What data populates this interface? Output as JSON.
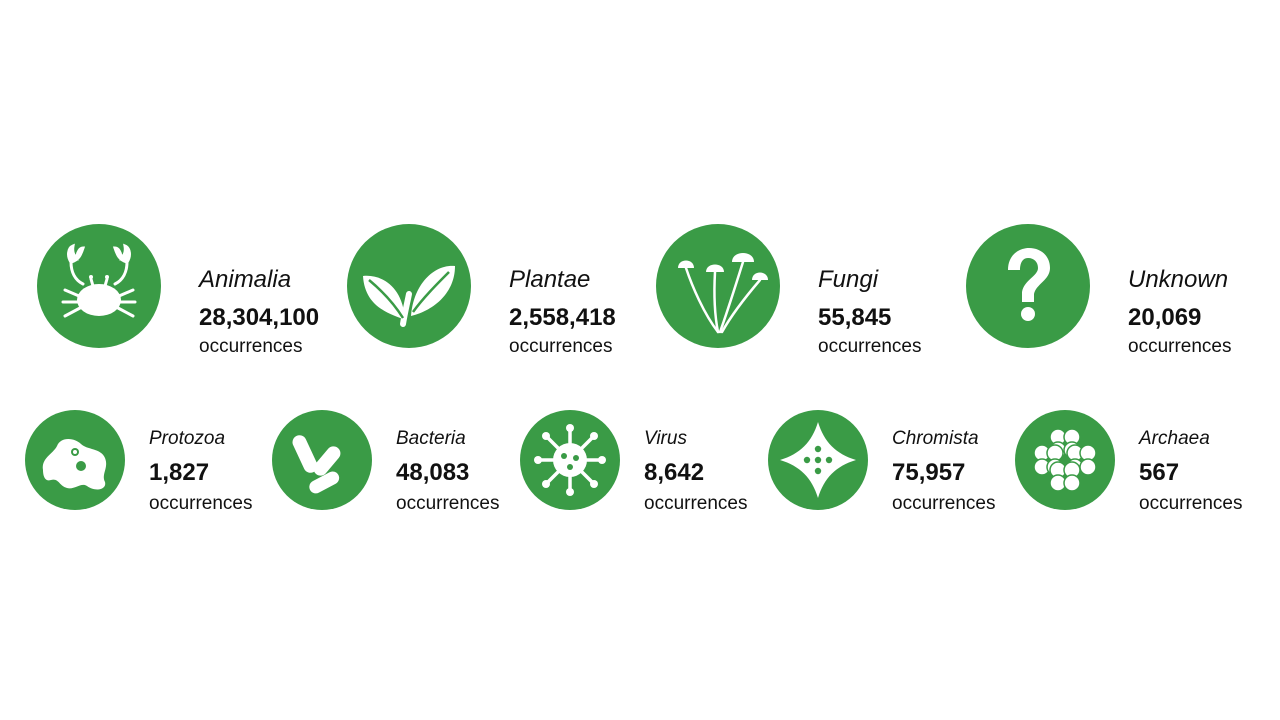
{
  "theme": {
    "accent": "#3a9b46",
    "text": "#111111",
    "background": "#ffffff"
  },
  "kingdoms": [
    {
      "name": "Animalia",
      "count": "28,304,100",
      "unit": "occurrences",
      "icon": "crab-icon"
    },
    {
      "name": "Plantae",
      "count": "2,558,418",
      "unit": "occurrences",
      "icon": "leaf-sprout-icon"
    },
    {
      "name": "Fungi",
      "count": "55,845",
      "unit": "occurrences",
      "icon": "mushroom-icon"
    },
    {
      "name": "Unknown",
      "count": "20,069",
      "unit": "occurrences",
      "icon": "question-mark-icon"
    },
    {
      "name": "Protozoa",
      "count": "1,827",
      "unit": "occurrences",
      "icon": "amoeba-icon"
    },
    {
      "name": "Bacteria",
      "count": "48,083",
      "unit": "occurrences",
      "icon": "bacteria-icon"
    },
    {
      "name": "Virus",
      "count": "8,642",
      "unit": "occurrences",
      "icon": "virus-icon"
    },
    {
      "name": "Chromista",
      "count": "75,957",
      "unit": "occurrences",
      "icon": "diatom-icon"
    },
    {
      "name": "Archaea",
      "count": "567",
      "unit": "occurrences",
      "icon": "archaea-cluster-icon"
    }
  ]
}
